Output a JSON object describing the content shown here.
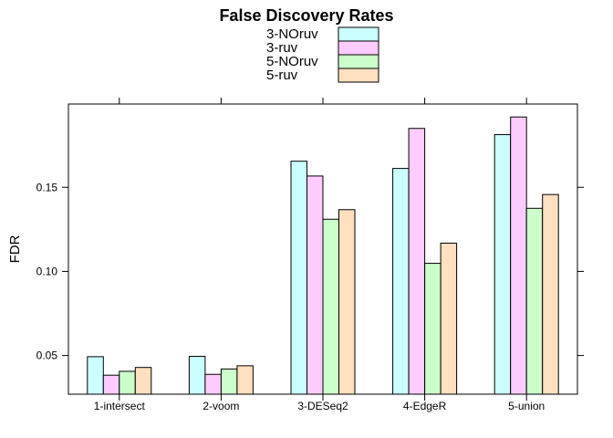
{
  "chart_data": {
    "type": "bar",
    "title": "False Discovery Rates",
    "xlabel": "",
    "ylabel": "FDR",
    "categories": [
      "1-intersect",
      "2-voom",
      "3-DESeq2",
      "4-EdgeR",
      "5-union"
    ],
    "series": [
      {
        "name": "3-NOruv",
        "color": "#ccffff",
        "values": [
          0.0493,
          0.0495,
          0.1655,
          0.1612,
          0.1813
        ]
      },
      {
        "name": "3-ruv",
        "color": "#ffccff",
        "values": [
          0.0383,
          0.0388,
          0.1567,
          0.185,
          0.1918
        ]
      },
      {
        "name": "5-NOruv",
        "color": "#ccffcc",
        "values": [
          0.0406,
          0.042,
          0.131,
          0.1048,
          0.1375
        ]
      },
      {
        "name": "5-ruv",
        "color": "#ffe0c0",
        "values": [
          0.0429,
          0.0439,
          0.1367,
          0.1168,
          0.1457
        ]
      }
    ],
    "ylim": [
      0.027,
      0.1995
    ],
    "yticks": [
      0.05,
      0.1,
      0.15
    ],
    "ytick_labels": [
      "0.05",
      "0.10",
      "0.15"
    ],
    "legend_position": "top",
    "grid": false
  }
}
